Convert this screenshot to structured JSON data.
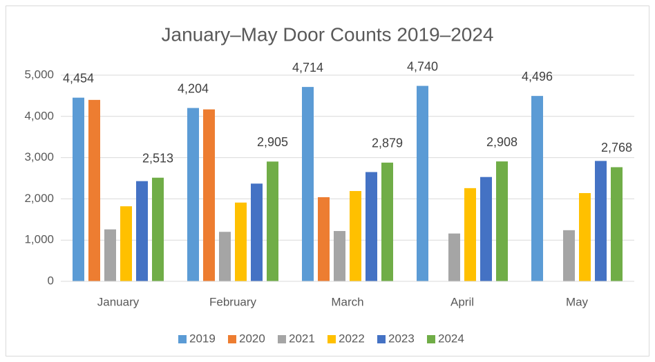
{
  "chart_data": {
    "type": "bar",
    "title": "January–May Door Counts 2019–2024",
    "categories": [
      "January",
      "February",
      "March",
      "April",
      "May"
    ],
    "series": [
      {
        "name": "2019",
        "color": "#5b9bd5",
        "values": [
          4454,
          4204,
          4714,
          4740,
          4496
        ],
        "value_labels": [
          "4,454",
          "4,204",
          "4,714",
          "4,740",
          "4,496"
        ]
      },
      {
        "name": "2020",
        "color": "#ed7d31",
        "values": [
          4400,
          4170,
          2040,
          null,
          null
        ]
      },
      {
        "name": "2021",
        "color": "#a5a5a5",
        "values": [
          1260,
          1200,
          1220,
          1160,
          1240
        ]
      },
      {
        "name": "2022",
        "color": "#ffc000",
        "values": [
          1820,
          1910,
          2190,
          2260,
          2140
        ]
      },
      {
        "name": "2023",
        "color": "#4472c4",
        "values": [
          2430,
          2370,
          2650,
          2530,
          2920
        ]
      },
      {
        "name": "2024",
        "color": "#70ad47",
        "values": [
          2513,
          2905,
          2879,
          2908,
          2768
        ],
        "value_labels": [
          "2,513",
          "2,905",
          "2,879",
          "2,908",
          "2,768"
        ]
      }
    ],
    "ylim": [
      0,
      5000
    ],
    "yticks": [
      0,
      {
        "value": 1000,
        "label": "1,000"
      },
      {
        "value": 2000,
        "label": "2,000"
      },
      {
        "value": 3000,
        "label": "3,000"
      },
      {
        "value": 4000,
        "label": "4,000"
      },
      {
        "value": 5000,
        "label": "5,000"
      }
    ],
    "grid": true,
    "legend": "bottom"
  }
}
